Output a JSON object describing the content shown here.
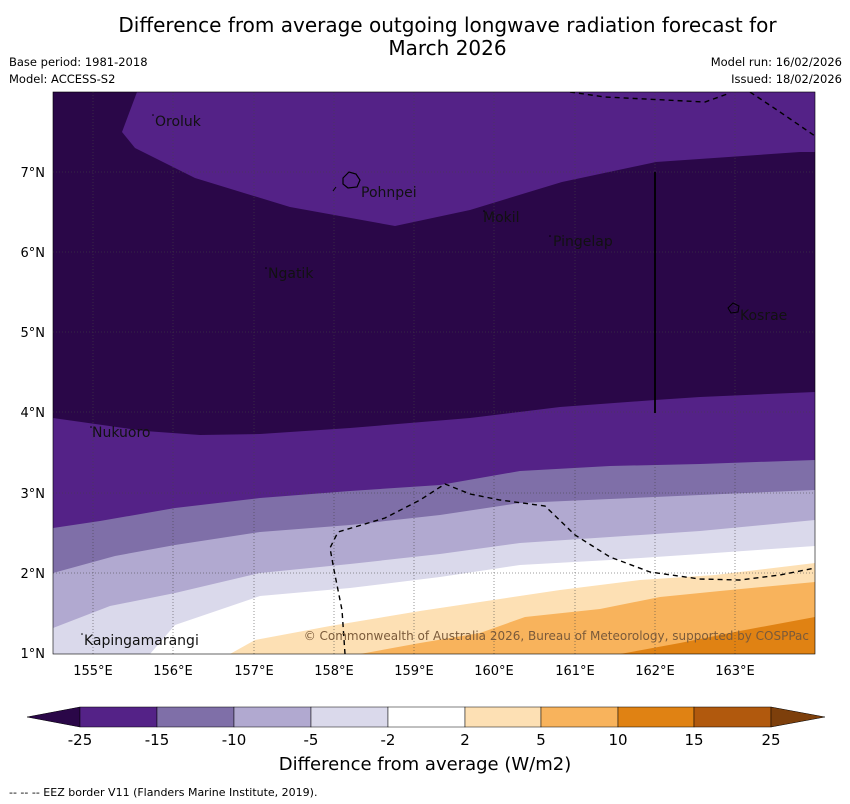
{
  "title_line1": "Difference from average outgoing longwave radiation forecast for",
  "title_line2": "March 2026",
  "meta_left": {
    "base_period": "Base period: 1981-2018",
    "model": "Model: ACCESS-S2"
  },
  "meta_right": {
    "model_run": "Model run: 16/02/2026",
    "issued": "Issued: 18/02/2026"
  },
  "places": {
    "oroluk": "Oroluk",
    "pohnpei": "Pohnpei",
    "mokil": "Mokil",
    "pingelap": "Pingelap",
    "ngatik": "Ngatik",
    "kosrae": "Kosrae",
    "nukuoro": "Nukuoro",
    "kapingamarangi": "Kapingamarangi"
  },
  "copyright": "© Commonwealth of Australia 2026, Bureau of Meteorology, supported by COSPPac",
  "axes": {
    "lon_labels": [
      "155°E",
      "156°E",
      "157°E",
      "158°E",
      "159°E",
      "160°E",
      "161°E",
      "162°E",
      "163°E"
    ],
    "lat_labels": [
      "7°N",
      "6°N",
      "5°N",
      "4°N",
      "3°N",
      "2°N",
      "1°N"
    ]
  },
  "colorbar": {
    "colors": [
      "#2a0748",
      "#542287",
      "#7f6fa8",
      "#b1a9d0",
      "#dad9eb",
      "#ffffff",
      "#fde0b4",
      "#f8b35c",
      "#e08213",
      "#b1590d",
      "#7d3f0b"
    ],
    "ticks": [
      "-25",
      "-15",
      "-10",
      "-5",
      "-2",
      "2",
      "5",
      "10",
      "15",
      "25"
    ],
    "title": "Difference from average (W/m2)"
  },
  "footnote": "--  --  -- EEZ border V11 (Flanders Marine Institute, 2019)."
}
